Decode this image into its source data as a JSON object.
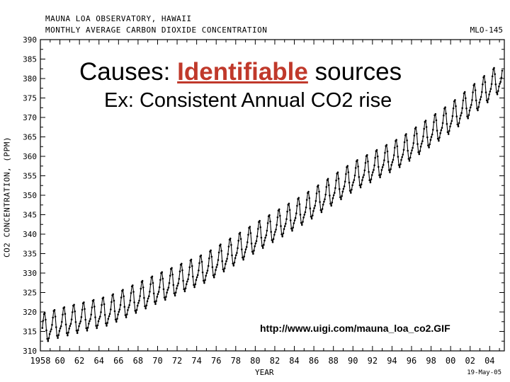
{
  "header": {
    "line1": "MAUNA LOA OBSERVATORY, HAWAII",
    "line2": "MONTHLY AVERAGE CARBON DIOXIDE CONCENTRATION",
    "station": "MLO-145",
    "date_stamp": "19-May-05"
  },
  "overlay": {
    "title_prefix": "Causes: ",
    "title_highlight": "Identifiable",
    "title_suffix": " sources",
    "subtitle": "Ex: Consistent Annual CO2 rise",
    "source_url": "http://www.uigi.com/mauna_loa_co2.GIF"
  },
  "chart_data": {
    "type": "line",
    "xlabel": "YEAR",
    "ylabel": "CO2 CONCENTRATION, (PPM)",
    "xlim": [
      1958,
      2005.5
    ],
    "ylim": [
      310,
      390
    ],
    "x_ticks": [
      1958,
      1960,
      1962,
      1964,
      1966,
      1968,
      1970,
      1972,
      1974,
      1976,
      1978,
      1980,
      1982,
      1984,
      1986,
      1988,
      1990,
      1992,
      1994,
      1996,
      1998,
      2000,
      2002,
      2004
    ],
    "x_tick_labels": [
      "1958",
      "60",
      "62",
      "64",
      "66",
      "68",
      "70",
      "72",
      "74",
      "76",
      "78",
      "80",
      "82",
      "84",
      "86",
      "88",
      "90",
      "92",
      "94",
      "96",
      "98",
      "00",
      "02",
      "04"
    ],
    "y_ticks": [
      310,
      315,
      320,
      325,
      330,
      335,
      340,
      345,
      350,
      355,
      360,
      365,
      370,
      375,
      380,
      385,
      390
    ],
    "years": [
      1958,
      1960,
      1965,
      1970,
      1975,
      1980,
      1985,
      1990,
      1995,
      2000,
      2005
    ],
    "annual_mean_ppm": [
      315.3,
      316.9,
      320.0,
      325.7,
      331.1,
      338.7,
      346.1,
      354.4,
      360.9,
      369.5,
      379.8
    ],
    "seasonal_amplitude_ppm": 3.3,
    "grid": false,
    "series_color": "#000000"
  }
}
